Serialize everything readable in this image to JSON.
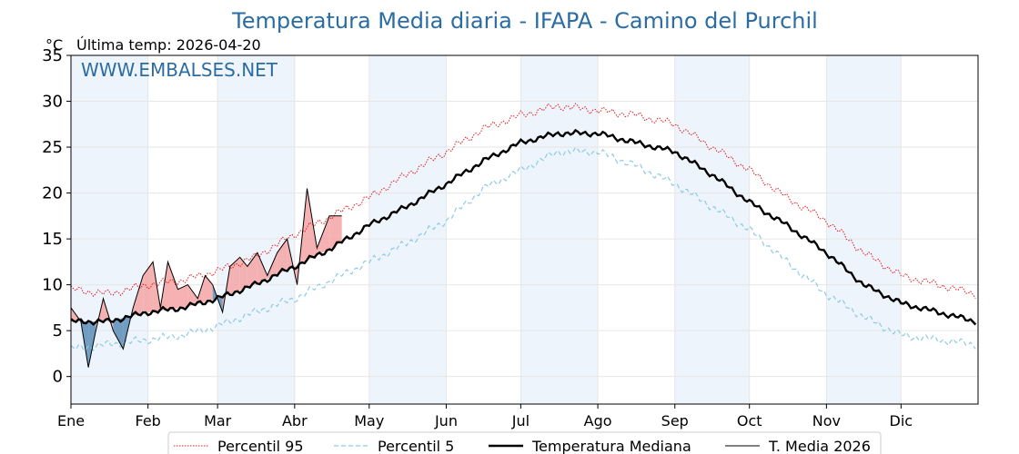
{
  "title": "Temperatura Media diaria - IFAPA - Camino del Purchil",
  "unit_label": "°C",
  "last_temp": "Última temp: 2026-04-20",
  "watermark": "WWW.EMBALSES.NET",
  "colors": {
    "title": "#2b6ca3",
    "p95": "#e41a1c",
    "p5": "#8ecae6",
    "median": "#000000",
    "current": "#000000",
    "fill_above": "#f4a5a5",
    "fill_below": "#5b8db8",
    "band": "#eef4fb"
  },
  "chart_data": {
    "type": "line",
    "title": "Temperatura Media diaria - IFAPA - Camino del Purchil",
    "ylabel": "°C",
    "ylim": [
      -3,
      35
    ],
    "yticks": [
      "0",
      "5",
      "10",
      "15",
      "20",
      "25",
      "30",
      "35"
    ],
    "month_labels": [
      "Ene",
      "Feb",
      "Mar",
      "Abr",
      "May",
      "Jun",
      "Jul",
      "Ago",
      "Sep",
      "Oct",
      "Nov",
      "Dic"
    ],
    "grid": true,
    "legend_position": "bottom",
    "x_day_of_year": [
      1,
      16,
      32,
      46,
      60,
      75,
      91,
      106,
      121,
      136,
      152,
      167,
      182,
      197,
      213,
      228,
      244,
      259,
      274,
      289,
      305,
      320,
      335,
      350,
      365
    ],
    "series": [
      {
        "name": "Percentil 95",
        "style": "dotted-red",
        "values": [
          9.5,
          9.0,
          10.0,
          10.5,
          11.5,
          13.0,
          15.5,
          17.5,
          19.5,
          22.0,
          24.5,
          27.0,
          28.5,
          29.5,
          29.0,
          28.5,
          27.5,
          25.0,
          22.5,
          19.5,
          17.0,
          13.5,
          11.0,
          10.0,
          9.0
        ]
      },
      {
        "name": "Percentil 5",
        "style": "dashed-lightblue",
        "values": [
          3.0,
          3.5,
          4.0,
          4.5,
          5.5,
          7.0,
          8.5,
          10.5,
          12.5,
          14.5,
          17.0,
          20.5,
          22.5,
          24.5,
          24.5,
          23.0,
          21.0,
          18.5,
          16.0,
          12.5,
          9.0,
          6.5,
          4.5,
          4.0,
          3.5
        ]
      },
      {
        "name": "Temperatura Mediana",
        "style": "thick-black",
        "values": [
          6.0,
          6.0,
          7.0,
          7.5,
          8.5,
          10.0,
          12.0,
          14.0,
          16.5,
          18.5,
          21.0,
          23.5,
          25.5,
          26.5,
          26.5,
          25.5,
          24.5,
          22.0,
          19.0,
          16.5,
          13.5,
          10.0,
          8.0,
          7.0,
          6.0
        ]
      },
      {
        "name": "T. Media 2026",
        "style": "thin-black",
        "x_day_of_year": [
          1,
          5,
          8,
          11,
          14,
          18,
          22,
          26,
          30,
          34,
          37,
          40,
          44,
          48,
          52,
          55,
          58,
          62,
          65,
          69,
          72,
          76,
          80,
          84,
          88,
          92,
          96,
          100,
          105,
          110
        ],
        "values": [
          7.5,
          6.0,
          1.0,
          5.0,
          8.5,
          5.0,
          3.0,
          7.5,
          11.0,
          12.5,
          7.5,
          12.5,
          9.5,
          10.0,
          8.5,
          11.0,
          10.0,
          7.0,
          12.0,
          13.0,
          12.0,
          13.5,
          11.0,
          13.5,
          15.0,
          10.0,
          20.5,
          14.0,
          17.5,
          17.5
        ]
      }
    ]
  },
  "legend": [
    {
      "label": "Percentil 95",
      "style": "dotted-red"
    },
    {
      "label": "Percentil 5",
      "style": "dashed-lightblue"
    },
    {
      "label": "Temperatura Mediana",
      "style": "thick-black"
    },
    {
      "label": "T. Media 2026",
      "style": "thin-black"
    }
  ]
}
